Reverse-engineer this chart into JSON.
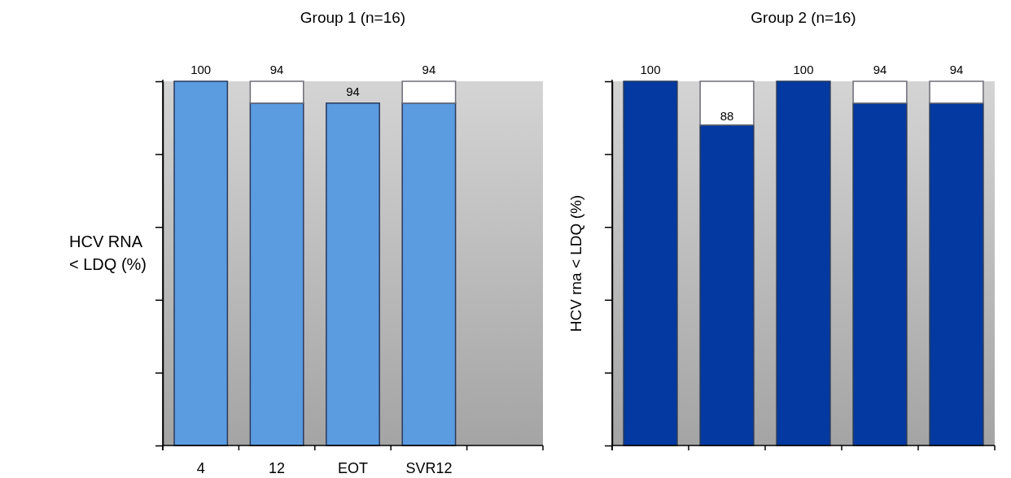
{
  "chart_data": [
    {
      "type": "bar",
      "title": "Group 1 (n=16)",
      "ylabel": "HCV RNA\n< LDQ (%)",
      "categories": [
        "4",
        "12",
        "EOT",
        "SVR12",
        null
      ],
      "stacked": true,
      "series": [
        {
          "color": "#5b9be0",
          "values": [
            100,
            94,
            94,
            94,
            null
          ],
          "value_labels": [
            "100",
            "94",
            "94",
            "94",
            null
          ]
        },
        {
          "color": "#ffffff",
          "values": [
            null,
            6,
            null,
            6,
            null
          ]
        }
      ],
      "ylim": [
        0,
        100
      ],
      "yticks": [
        {
          "value": 0,
          "label": null
        },
        {
          "value": 20,
          "label": null
        },
        {
          "value": 40,
          "label": null
        },
        {
          "value": 60,
          "label": null
        },
        {
          "value": 80,
          "label": null
        },
        {
          "value": 100,
          "label": null
        }
      ],
      "tick_labels": "x",
      "grid": false
    },
    {
      "type": "bar",
      "title": "Group 2 (n=16)",
      "ylabel": "HCV rna < LDQ (%)",
      "categories": [
        null,
        null,
        null,
        null,
        null
      ],
      "stacked": true,
      "series": [
        {
          "color": "#0339a0",
          "values": [
            100,
            88,
            100,
            94,
            94
          ],
          "value_labels": [
            "100",
            "88",
            "100",
            "94",
            "94"
          ]
        },
        {
          "color": "#ffffff",
          "values": [
            null,
            12,
            null,
            6,
            6
          ]
        }
      ],
      "ylim": [
        0,
        100
      ],
      "yticks": [
        {
          "value": 0,
          "label": null
        },
        {
          "value": 20,
          "label": null
        },
        {
          "value": 40,
          "label": null
        },
        {
          "value": 60,
          "label": null
        },
        {
          "value": 80,
          "label": null
        },
        {
          "value": 100,
          "label": null
        }
      ],
      "tick_labels": false,
      "grid": false
    }
  ]
}
